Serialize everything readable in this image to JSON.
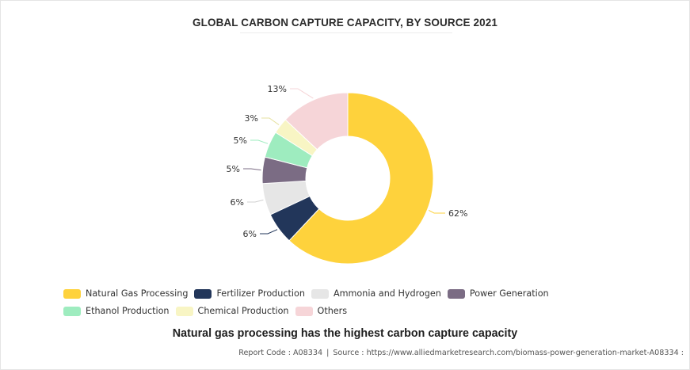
{
  "chart_data": {
    "type": "pie",
    "donut": true,
    "title": "GLOBAL CARBON CAPTURE CAPACITY, BY SOURCE 2021",
    "unit": "%",
    "slices": [
      {
        "name": "Natural Gas Processing",
        "value": 62,
        "label": "62%",
        "color": "#fed23c"
      },
      {
        "name": "Fertilizer Production",
        "value": 6,
        "label": "6%",
        "color": "#22365a"
      },
      {
        "name": "Ammonia and Hydrogen",
        "value": 6,
        "label": "6%",
        "color": "#e6e6e6"
      },
      {
        "name": "Power Generation",
        "value": 5,
        "label": "5%",
        "color": "#7b6c84"
      },
      {
        "name": "Ethanol Production",
        "value": 5,
        "label": "5%",
        "color": "#9eecbf"
      },
      {
        "name": "Chemical Production",
        "value": 3,
        "label": "3%",
        "color": "#f8f5c4"
      },
      {
        "name": "Others",
        "value": 13,
        "label": "13%",
        "color": "#f6d5d8"
      }
    ],
    "legend_position": "bottom"
  },
  "subtitle": "Natural gas processing has the highest carbon capture capacity",
  "footer": {
    "report_code": "Report Code : A08334",
    "source": "Source : https://www.alliedmarketresearch.com/biomass-power-generation-market-A08334 :"
  }
}
